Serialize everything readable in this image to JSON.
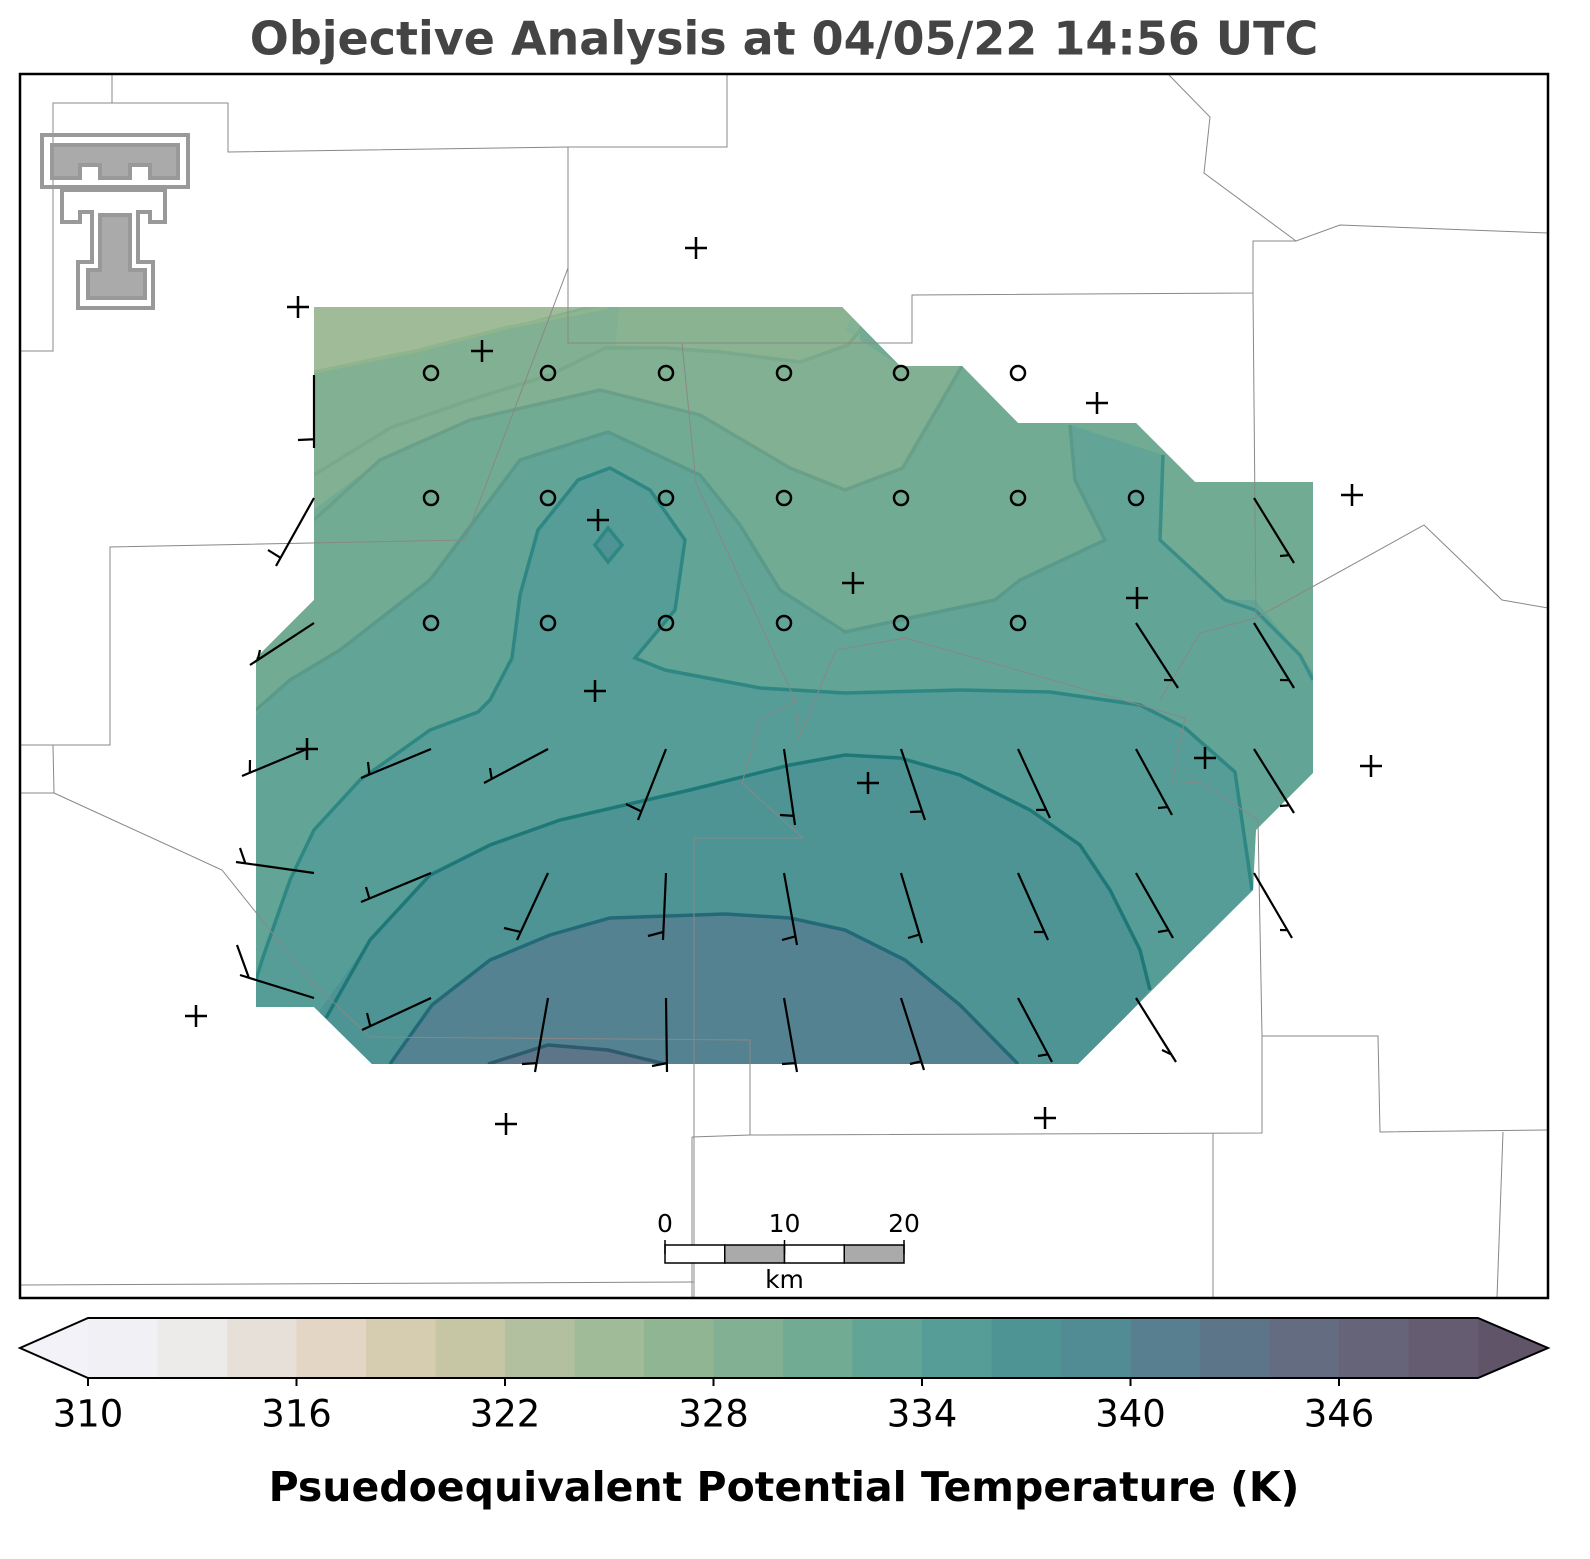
{
  "title": "Objective Analysis at 04/05/22 14:56 UTC",
  "colorbar": {
    "label": "Psuedoequivalent Potential Temperature (K)",
    "lim": [
      310,
      350
    ],
    "levels": [
      310,
      312,
      314,
      316,
      318,
      320,
      322,
      324,
      326,
      328,
      330,
      332,
      334,
      336,
      338,
      340,
      342,
      344,
      346,
      348,
      350
    ],
    "colors": [
      "#f1f0f5",
      "#ecebea",
      "#e6e0d9",
      "#e3d6c4",
      "#d6cdb0",
      "#c6c6a5",
      "#b3c0a0",
      "#a0bb98",
      "#8fb593",
      "#82b092",
      "#72ab93",
      "#62a495",
      "#559d96",
      "#4e9494",
      "#518b94",
      "#577f8f",
      "#5d7589",
      "#646c81",
      "#666479",
      "#665c72"
    ],
    "under_color": "#f2f2f8",
    "over_color": "#5f5468",
    "ticks": [
      310,
      316,
      322,
      328,
      334,
      340,
      346
    ]
  },
  "scale_bar": {
    "ticks": [
      0,
      10,
      20
    ],
    "unit": "km"
  }
}
